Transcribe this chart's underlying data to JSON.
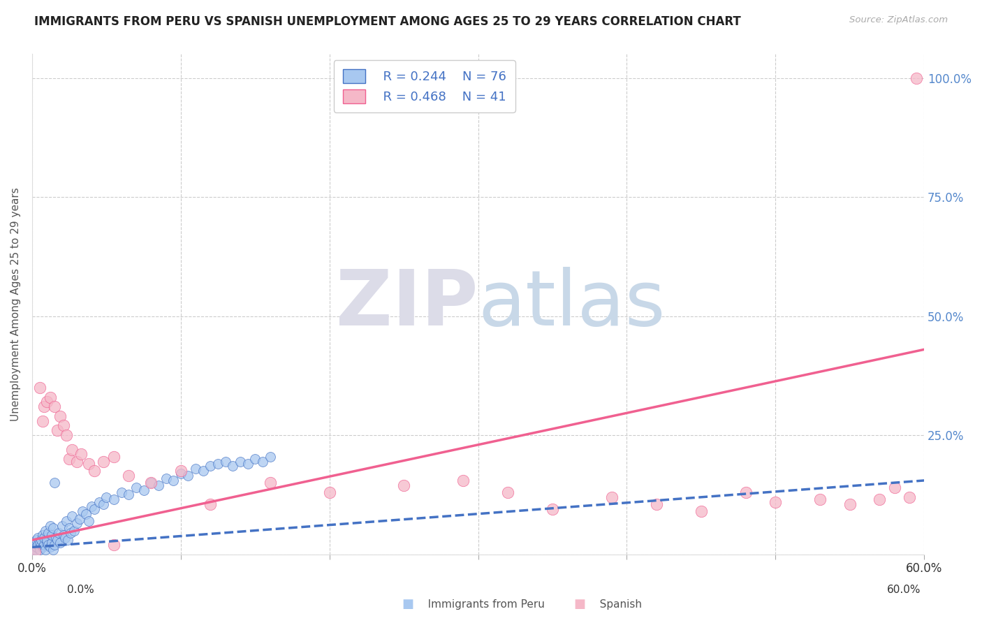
{
  "title": "IMMIGRANTS FROM PERU VS SPANISH UNEMPLOYMENT AMONG AGES 25 TO 29 YEARS CORRELATION CHART",
  "source": "Source: ZipAtlas.com",
  "ylabel": "Unemployment Among Ages 25 to 29 years",
  "xlim": [
    0.0,
    0.6
  ],
  "ylim": [
    0.0,
    1.05
  ],
  "xticks": [
    0.0,
    0.1,
    0.2,
    0.3,
    0.4,
    0.5,
    0.6
  ],
  "xticklabels": [
    "0.0%",
    "",
    "",
    "",
    "",
    "",
    "60.0%"
  ],
  "ytick_positions": [
    0.0,
    0.25,
    0.5,
    0.75,
    1.0
  ],
  "ytick_labels_right": [
    "",
    "25.0%",
    "50.0%",
    "75.0%",
    "100.0%"
  ],
  "legend_r1": "R = 0.244",
  "legend_n1": "N = 76",
  "legend_r2": "R = 0.468",
  "legend_n2": "N = 41",
  "color_peru": "#A8C8F0",
  "color_spanish": "#F5B8C8",
  "color_peru_line": "#4472C4",
  "color_spanish_line": "#F06090",
  "peru_points_x": [
    0.0,
    0.001,
    0.001,
    0.002,
    0.002,
    0.003,
    0.003,
    0.004,
    0.004,
    0.005,
    0.005,
    0.006,
    0.006,
    0.007,
    0.007,
    0.008,
    0.008,
    0.009,
    0.009,
    0.01,
    0.01,
    0.011,
    0.011,
    0.012,
    0.012,
    0.013,
    0.013,
    0.014,
    0.014,
    0.015,
    0.015,
    0.016,
    0.017,
    0.018,
    0.019,
    0.02,
    0.021,
    0.022,
    0.023,
    0.024,
    0.025,
    0.026,
    0.027,
    0.028,
    0.03,
    0.032,
    0.034,
    0.036,
    0.038,
    0.04,
    0.042,
    0.045,
    0.048,
    0.05,
    0.055,
    0.06,
    0.065,
    0.07,
    0.075,
    0.08,
    0.085,
    0.09,
    0.095,
    0.1,
    0.105,
    0.11,
    0.115,
    0.12,
    0.125,
    0.13,
    0.135,
    0.14,
    0.145,
    0.15,
    0.155,
    0.16
  ],
  "peru_points_y": [
    0.01,
    0.015,
    0.02,
    0.01,
    0.025,
    0.015,
    0.03,
    0.02,
    0.035,
    0.01,
    0.025,
    0.02,
    0.03,
    0.015,
    0.04,
    0.02,
    0.035,
    0.01,
    0.05,
    0.025,
    0.03,
    0.02,
    0.045,
    0.015,
    0.06,
    0.025,
    0.04,
    0.01,
    0.055,
    0.02,
    0.15,
    0.035,
    0.03,
    0.045,
    0.025,
    0.06,
    0.04,
    0.035,
    0.07,
    0.03,
    0.055,
    0.045,
    0.08,
    0.05,
    0.065,
    0.075,
    0.09,
    0.085,
    0.07,
    0.1,
    0.095,
    0.11,
    0.105,
    0.12,
    0.115,
    0.13,
    0.125,
    0.14,
    0.135,
    0.15,
    0.145,
    0.16,
    0.155,
    0.17,
    0.165,
    0.18,
    0.175,
    0.185,
    0.19,
    0.195,
    0.185,
    0.195,
    0.19,
    0.2,
    0.195,
    0.205
  ],
  "spanish_points_x": [
    0.002,
    0.005,
    0.007,
    0.008,
    0.01,
    0.012,
    0.015,
    0.017,
    0.019,
    0.021,
    0.023,
    0.025,
    0.027,
    0.03,
    0.033,
    0.038,
    0.042,
    0.048,
    0.055,
    0.065,
    0.08,
    0.1,
    0.12,
    0.16,
    0.2,
    0.25,
    0.29,
    0.32,
    0.35,
    0.39,
    0.42,
    0.45,
    0.48,
    0.5,
    0.53,
    0.55,
    0.57,
    0.58,
    0.59,
    0.595,
    0.055
  ],
  "spanish_points_y": [
    0.005,
    0.35,
    0.28,
    0.31,
    0.32,
    0.33,
    0.31,
    0.26,
    0.29,
    0.27,
    0.25,
    0.2,
    0.22,
    0.195,
    0.21,
    0.19,
    0.175,
    0.195,
    0.205,
    0.165,
    0.15,
    0.175,
    0.105,
    0.15,
    0.13,
    0.145,
    0.155,
    0.13,
    0.095,
    0.12,
    0.105,
    0.09,
    0.13,
    0.11,
    0.115,
    0.105,
    0.115,
    0.14,
    0.12,
    1.0,
    0.02
  ],
  "peru_trendline_x": [
    0.0,
    0.6
  ],
  "peru_trendline_y": [
    0.015,
    0.155
  ],
  "spanish_trendline_x": [
    0.0,
    0.6
  ],
  "spanish_trendline_y": [
    0.03,
    0.43
  ]
}
